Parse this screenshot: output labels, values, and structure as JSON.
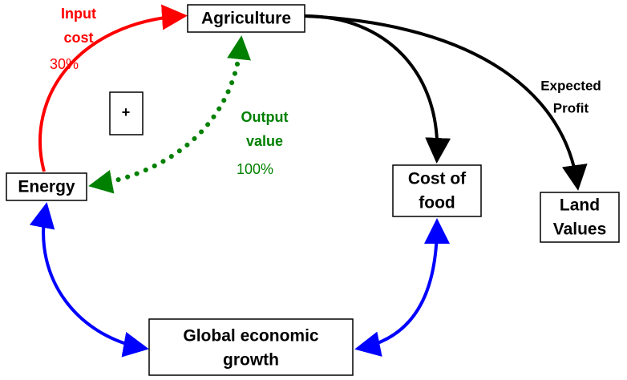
{
  "nodes": [
    {
      "lines": [
        "Agriculture"
      ]
    },
    {
      "lines": [
        "Energy"
      ]
    },
    {
      "lines": [
        "Cost of",
        "food"
      ]
    },
    {
      "lines": [
        "Land",
        "Values"
      ]
    },
    {
      "lines": [
        "Global economic",
        "growth"
      ]
    },
    {
      "lines": [
        "+"
      ]
    }
  ],
  "edge_labels": [
    {
      "lines": [
        "Input",
        "cost"
      ],
      "percent": "30%"
    },
    {
      "lines": [
        "Output",
        "value"
      ],
      "percent": "100%"
    },
    {
      "lines": [
        "Expected",
        "Profit"
      ]
    }
  ]
}
